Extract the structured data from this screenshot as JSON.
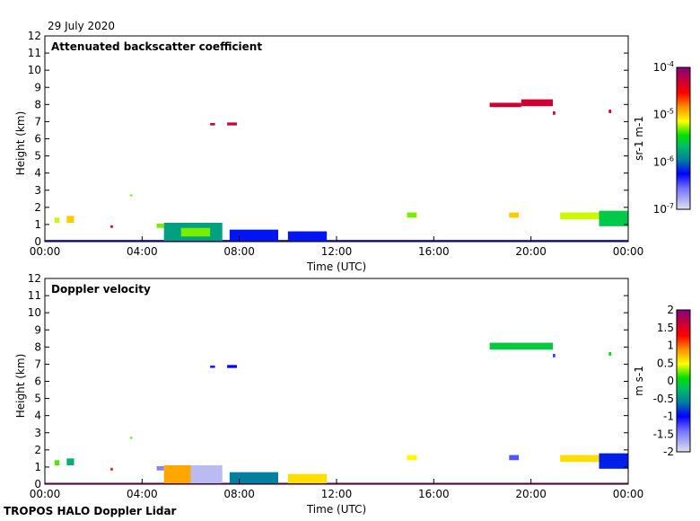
{
  "date_label": "29 July 2020",
  "footer_label": "TROPOS HALO Doppler Lidar",
  "chart_data": [
    {
      "type": "heatmap",
      "title": "Attenuated backscatter coefficient",
      "xlabel": "Time (UTC)",
      "ylabel": "Height (km)",
      "xlim": [
        0,
        24
      ],
      "ylim": [
        0,
        12
      ],
      "x_ticks": [
        "00:00",
        "04:00",
        "08:00",
        "12:00",
        "16:00",
        "20:00",
        "00:00"
      ],
      "y_ticks": [
        "0",
        "1",
        "2",
        "3",
        "4",
        "5",
        "6",
        "7",
        "8",
        "9",
        "10",
        "11",
        "12"
      ],
      "colorbar": {
        "label": "sr-1 m-1",
        "scale": "log",
        "range": [
          -7,
          -4
        ],
        "ticks": [
          "10-7",
          "10-6",
          "10-5",
          "10-4"
        ]
      },
      "features": [
        {
          "t": [
            0,
            24
          ],
          "h": [
            0,
            0.1
          ],
          "v": -6.3
        },
        {
          "t": [
            0.4,
            0.6
          ],
          "h": [
            1.1,
            1.4
          ],
          "v": -5.2
        },
        {
          "t": [
            0.9,
            1.2
          ],
          "h": [
            1.1,
            1.5
          ],
          "v": -5.0
        },
        {
          "t": [
            2.7,
            2.8
          ],
          "h": [
            0.8,
            0.95
          ],
          "v": -4.4
        },
        {
          "t": [
            3.5,
            3.6
          ],
          "h": [
            2.65,
            2.75
          ],
          "v": -5.3
        },
        {
          "t": [
            4.6,
            4.9
          ],
          "h": [
            0.8,
            1.05
          ],
          "v": -5.3
        },
        {
          "t": [
            4.9,
            7.3
          ],
          "h": [
            0.05,
            1.1
          ],
          "v": -5.8
        },
        {
          "t": [
            5.6,
            6.8
          ],
          "h": [
            0.3,
            0.8
          ],
          "v": -5.3
        },
        {
          "t": [
            7.6,
            9.6
          ],
          "h": [
            0.05,
            0.7
          ],
          "v": -6.2
        },
        {
          "t": [
            10.0,
            11.6
          ],
          "h": [
            0.05,
            0.6
          ],
          "v": -6.2
        },
        {
          "t": [
            6.8,
            7.0
          ],
          "h": [
            6.78,
            6.92
          ],
          "v": -4.3
        },
        {
          "t": [
            7.5,
            7.9
          ],
          "h": [
            6.78,
            6.95
          ],
          "v": -4.3
        },
        {
          "t": [
            14.9,
            15.3
          ],
          "h": [
            1.4,
            1.7
          ],
          "v": -5.3
        },
        {
          "t": [
            18.3,
            19.6
          ],
          "h": [
            7.85,
            8.1
          ],
          "v": -4.3
        },
        {
          "t": [
            19.6,
            20.9
          ],
          "h": [
            7.9,
            8.3
          ],
          "v": -4.3
        },
        {
          "t": [
            20.9,
            21.0
          ],
          "h": [
            7.4,
            7.6
          ],
          "v": -4.3
        },
        {
          "t": [
            23.2,
            23.3
          ],
          "h": [
            7.5,
            7.7
          ],
          "v": -4.3
        },
        {
          "t": [
            19.1,
            19.5
          ],
          "h": [
            1.4,
            1.7
          ],
          "v": -5.0
        },
        {
          "t": [
            21.2,
            22.8
          ],
          "h": [
            1.3,
            1.7
          ],
          "v": -5.2
        },
        {
          "t": [
            22.8,
            24
          ],
          "h": [
            0.9,
            1.8
          ],
          "v": -5.6
        }
      ]
    },
    {
      "type": "heatmap",
      "title": "Doppler velocity",
      "xlabel": "Time (UTC)",
      "ylabel": "Height (km)",
      "xlim": [
        0,
        24
      ],
      "ylim": [
        0,
        12
      ],
      "x_ticks": [
        "00:00",
        "04:00",
        "08:00",
        "12:00",
        "16:00",
        "20:00",
        "00:00"
      ],
      "y_ticks": [
        "0",
        "1",
        "2",
        "3",
        "4",
        "5",
        "6",
        "7",
        "8",
        "9",
        "10",
        "11",
        "12"
      ],
      "colorbar": {
        "label": "m s-1",
        "scale": "linear",
        "range": [
          -2,
          2
        ],
        "ticks": [
          "-2",
          "-1.5",
          "-1",
          "-0.5",
          "0",
          "0.5",
          "1",
          "1.5",
          "2"
        ]
      },
      "features": [
        {
          "t": [
            0,
            24
          ],
          "h": [
            0,
            0.08
          ],
          "v": 1.9
        },
        {
          "t": [
            0.4,
            0.6
          ],
          "h": [
            1.1,
            1.4
          ],
          "v": 0.2
        },
        {
          "t": [
            0.9,
            1.2
          ],
          "h": [
            1.1,
            1.5
          ],
          "v": -0.3
        },
        {
          "t": [
            2.7,
            2.8
          ],
          "h": [
            0.8,
            0.95
          ],
          "v": 1.2
        },
        {
          "t": [
            3.5,
            3.6
          ],
          "h": [
            2.65,
            2.75
          ],
          "v": 0.2
        },
        {
          "t": [
            4.6,
            4.9
          ],
          "h": [
            0.8,
            1.05
          ],
          "v": -1.5
        },
        {
          "t": [
            4.9,
            6.0
          ],
          "h": [
            0.05,
            1.1
          ],
          "v": 0.8
        },
        {
          "t": [
            6.0,
            7.3
          ],
          "h": [
            0.05,
            1.1
          ],
          "v": -1.8
        },
        {
          "t": [
            7.6,
            9.6
          ],
          "h": [
            0.05,
            0.7
          ],
          "v": -0.6
        },
        {
          "t": [
            10.0,
            11.6
          ],
          "h": [
            0.05,
            0.6
          ],
          "v": 0.6
        },
        {
          "t": [
            6.8,
            7.0
          ],
          "h": [
            6.78,
            6.92
          ],
          "v": -1.1
        },
        {
          "t": [
            7.5,
            7.9
          ],
          "h": [
            6.78,
            6.95
          ],
          "v": -1.0
        },
        {
          "t": [
            14.9,
            15.3
          ],
          "h": [
            1.4,
            1.7
          ],
          "v": 0.5
        },
        {
          "t": [
            18.3,
            20.9
          ],
          "h": [
            7.85,
            8.25
          ],
          "v": -0.1
        },
        {
          "t": [
            20.9,
            21.0
          ],
          "h": [
            7.4,
            7.6
          ],
          "v": -1.2
        },
        {
          "t": [
            23.2,
            23.3
          ],
          "h": [
            7.5,
            7.7
          ],
          "v": 0.0
        },
        {
          "t": [
            19.1,
            19.5
          ],
          "h": [
            1.4,
            1.7
          ],
          "v": -1.3
        },
        {
          "t": [
            21.2,
            22.8
          ],
          "h": [
            1.3,
            1.7
          ],
          "v": 0.6
        },
        {
          "t": [
            22.8,
            24
          ],
          "h": [
            0.9,
            1.8
          ],
          "v": -0.9
        }
      ]
    }
  ]
}
